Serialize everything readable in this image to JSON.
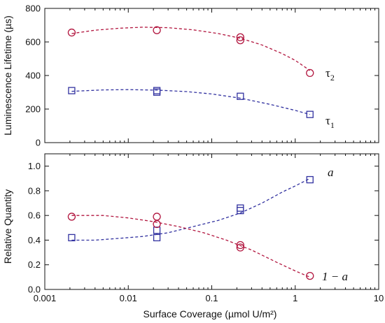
{
  "colors": {
    "red": "#b2163f",
    "blue": "#3232a0",
    "axis": "#111111"
  },
  "chart_data": [
    {
      "type": "scatter",
      "panel": "top",
      "ylabel": "Luminescence Lifetime (µs)",
      "xscale": "log",
      "xlim": [
        0.001,
        10
      ],
      "ylim": [
        0,
        800
      ],
      "yticks": [
        "0",
        "200",
        "400",
        "600",
        "800"
      ],
      "series": [
        {
          "name": "τ2",
          "marker": "circle",
          "color": "#b2163f",
          "points": [
            [
              0.0021,
              656
            ],
            [
              0.022,
              670
            ],
            [
              0.22,
              628
            ],
            [
              0.22,
              610
            ],
            [
              1.5,
              415
            ]
          ],
          "fit_x": [
            0.0021,
            0.004,
            0.008,
            0.015,
            0.03,
            0.06,
            0.12,
            0.22,
            0.4,
            0.7,
            1.0,
            1.5
          ],
          "fit_y": [
            650,
            670,
            682,
            688,
            685,
            672,
            650,
            622,
            582,
            530,
            490,
            430
          ]
        },
        {
          "name": "τ1",
          "marker": "square",
          "color": "#3232a0",
          "points": [
            [
              0.0021,
              310
            ],
            [
              0.022,
              301
            ],
            [
              0.022,
              310
            ],
            [
              0.22,
              276
            ],
            [
              1.5,
              168
            ]
          ],
          "fit_x": [
            0.0021,
            0.005,
            0.01,
            0.022,
            0.05,
            0.1,
            0.22,
            0.5,
            1.0,
            1.5
          ],
          "fit_y": [
            306,
            314,
            316,
            313,
            304,
            290,
            265,
            228,
            192,
            168
          ]
        }
      ],
      "labels": [
        {
          "main": "τ",
          "sub": "2"
        },
        {
          "main": "τ",
          "sub": "1"
        }
      ]
    },
    {
      "type": "scatter",
      "panel": "bottom",
      "ylabel": "Relative Quantity",
      "xlabel": "Surface Coverage (µmol U/m²)",
      "xscale": "log",
      "xlim": [
        0.001,
        10
      ],
      "ylim": [
        0,
        1.1
      ],
      "yticks": [
        "0.0",
        "0.2",
        "0.4",
        "0.6",
        "0.8",
        "1.0"
      ],
      "xticks": [
        "0.001",
        "0.01",
        "0.1",
        "1",
        "10"
      ],
      "series": [
        {
          "name": "a",
          "marker": "square",
          "color": "#3232a0",
          "points": [
            [
              0.0021,
              0.42
            ],
            [
              0.022,
              0.42
            ],
            [
              0.022,
              0.48
            ],
            [
              0.22,
              0.64
            ],
            [
              0.22,
              0.66
            ],
            [
              1.5,
              0.89
            ]
          ],
          "fit_x": [
            0.0021,
            0.004,
            0.008,
            0.015,
            0.03,
            0.06,
            0.12,
            0.22,
            0.4,
            0.7,
            1.0,
            1.5
          ],
          "fit_y": [
            0.4,
            0.4,
            0.415,
            0.43,
            0.46,
            0.51,
            0.56,
            0.62,
            0.7,
            0.79,
            0.84,
            0.9
          ]
        },
        {
          "name": "1 − a",
          "marker": "circle",
          "color": "#b2163f",
          "points": [
            [
              0.0021,
              0.59
            ],
            [
              0.022,
              0.59
            ],
            [
              0.022,
              0.53
            ],
            [
              0.22,
              0.36
            ],
            [
              0.22,
              0.34
            ],
            [
              1.5,
              0.11
            ]
          ],
          "fit_x": [
            0.0021,
            0.005,
            0.01,
            0.02,
            0.04,
            0.08,
            0.15,
            0.3,
            0.6,
            1.0,
            1.5
          ],
          "fit_y": [
            0.6,
            0.6,
            0.58,
            0.55,
            0.51,
            0.46,
            0.4,
            0.32,
            0.22,
            0.15,
            0.1
          ]
        }
      ],
      "labels": [
        {
          "main": "a"
        },
        {
          "main": "1 − a"
        }
      ]
    }
  ]
}
